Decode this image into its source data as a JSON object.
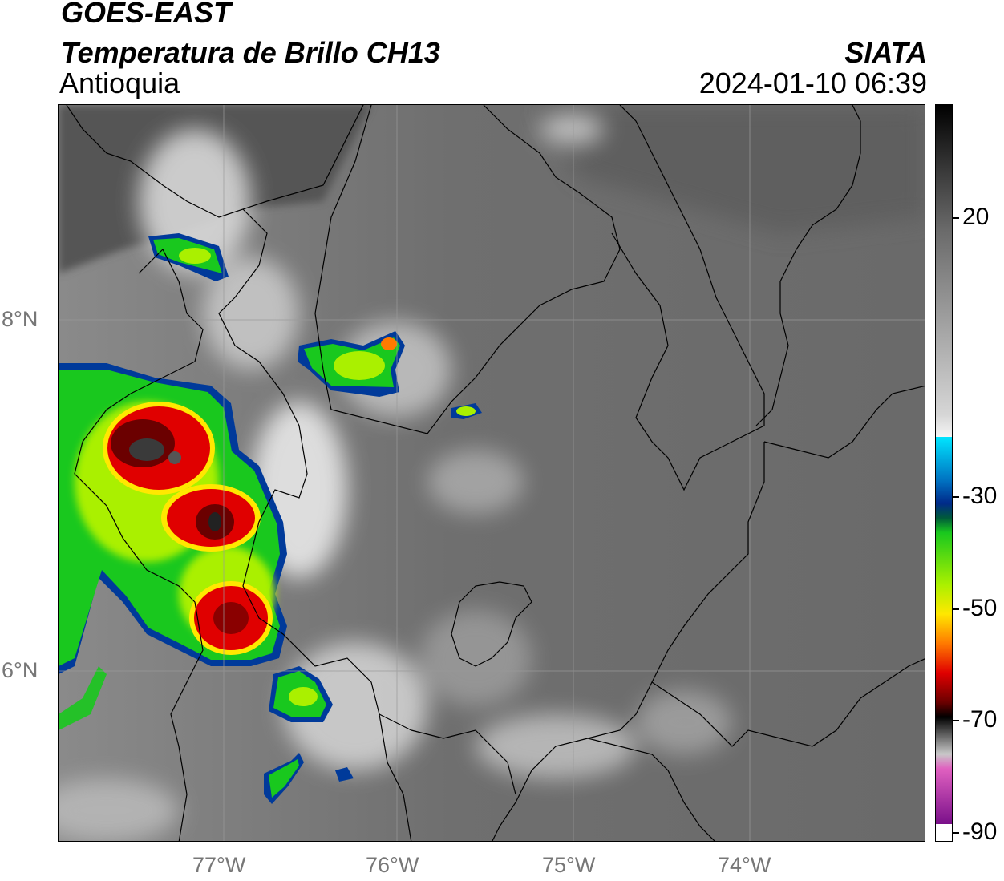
{
  "header": {
    "satellite": "GOES-EAST",
    "product": "Temperatura de Brillo CH13",
    "region": "Antioquia",
    "agency": "SIATA",
    "timestamp": "2024-01-10 06:39"
  },
  "map": {
    "longitude_labels": [
      "77°W",
      "76°W",
      "75°W",
      "74°W"
    ],
    "latitude_labels": [
      "8°N",
      "6°N"
    ],
    "grid_lines": true
  },
  "colorbar": {
    "tick_labels": [
      "20",
      "-30",
      "-50",
      "-70",
      "-90"
    ],
    "colors": {
      "black": "#000000",
      "gray": "#7a7a7a",
      "white": "#f5f5f5",
      "cyan": "#00e5ff",
      "navy": "#002a8a",
      "green": "#19c81e",
      "lime": "#aaf000",
      "yellow": "#ffe800",
      "orange": "#ff7a00",
      "red": "#e00000",
      "dark_red": "#6b0000",
      "pink": "#e060c0",
      "purple": "#7a108a"
    }
  }
}
